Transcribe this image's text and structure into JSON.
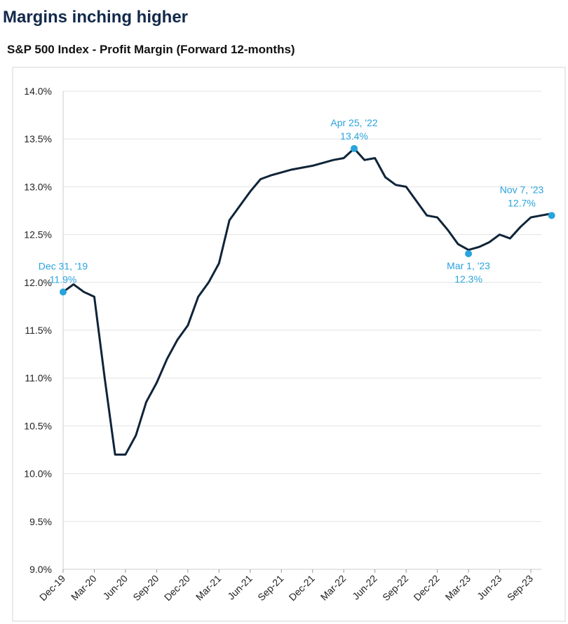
{
  "chart_data": {
    "type": "line",
    "title": "Margins inching higher",
    "subtitle": "S&P 500 Index - Profit Margin (Forward 12-months)",
    "categories": [
      "Dec-19",
      null,
      null,
      "Mar-20",
      null,
      null,
      "Jun-20",
      null,
      null,
      "Sep-20",
      null,
      null,
      "Dec-20",
      null,
      null,
      "Mar-21",
      null,
      null,
      "Jun-21",
      null,
      null,
      "Sep-21",
      null,
      null,
      "Dec-21",
      null,
      null,
      "Mar-22",
      null,
      null,
      "Jun-22",
      null,
      null,
      "Sep-22",
      null,
      null,
      "Dec-22",
      null,
      null,
      "Mar-23",
      null,
      null,
      "Jun-23",
      null,
      null,
      "Sep-23",
      null,
      null
    ],
    "series": [
      {
        "name": "Profit Margin",
        "color": "#0f2438",
        "values": [
          11.9,
          11.98,
          11.9,
          11.85,
          11.0,
          10.2,
          10.2,
          10.4,
          10.75,
          10.95,
          11.2,
          11.4,
          11.55,
          11.85,
          12.0,
          12.2,
          12.65,
          12.8,
          12.95,
          13.08,
          13.12,
          13.15,
          13.18,
          13.2,
          13.22,
          13.25,
          13.28,
          13.3,
          13.4,
          13.28,
          13.3,
          13.1,
          13.02,
          13.0,
          12.85,
          12.7,
          12.68,
          12.55,
          12.4,
          12.34,
          12.37,
          12.42,
          12.5,
          12.46,
          12.58,
          12.68,
          12.7,
          12.72
        ]
      }
    ],
    "annotations": [
      {
        "text": "Dec 31, '19",
        "value": 11.9,
        "value_label": "11.9%",
        "index": 0,
        "position": "above"
      },
      {
        "text": "Apr 25, '22",
        "value": 13.4,
        "value_label": "13.4%",
        "index": 28,
        "position": "above"
      },
      {
        "text": "Mar 1, '23",
        "value": 12.3,
        "value_label": "12.3%",
        "index": 39,
        "position": "below"
      },
      {
        "text": "Nov 7, '23",
        "value": 12.7,
        "value_label": "12.7%",
        "index": 47,
        "position": "above"
      }
    ],
    "annotation_color": "#29a3dd",
    "ylim": [
      9,
      14
    ],
    "yticks": [
      {
        "value": 9,
        "label": "9.0%"
      },
      {
        "value": 9.5,
        "label": "9.5%"
      },
      {
        "value": 10,
        "label": "10.0%"
      },
      {
        "value": 10.5,
        "label": "10.5%"
      },
      {
        "value": 11,
        "label": "11.0%"
      },
      {
        "value": 11.5,
        "label": "11.5%"
      },
      {
        "value": 12,
        "label": "12.0%"
      },
      {
        "value": 12.5,
        "label": "12.5%"
      },
      {
        "value": 13,
        "label": "13.0%"
      },
      {
        "value": 13.5,
        "label": "13.5%"
      },
      {
        "value": 14,
        "label": "14.0%"
      }
    ],
    "grid": true
  }
}
